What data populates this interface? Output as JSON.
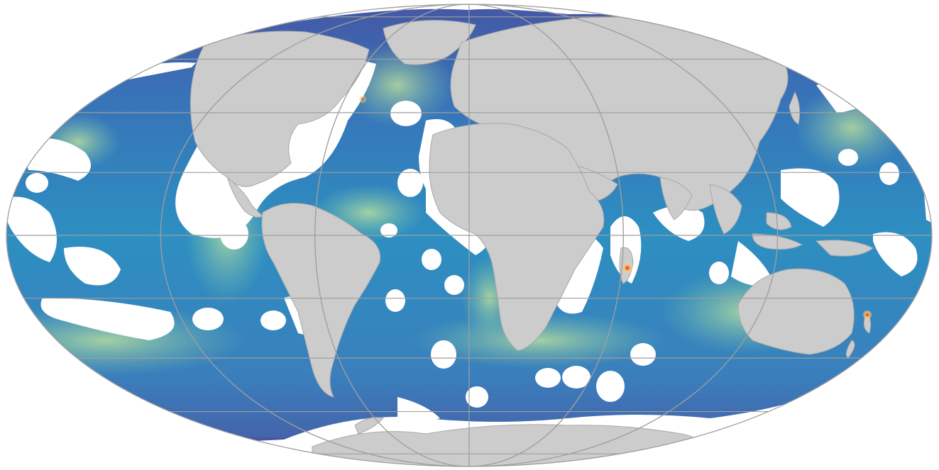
{
  "map": {
    "projection": "mollweide",
    "graticule": true,
    "colors": {
      "background": "#ffffff",
      "land": "#cccccc",
      "land_border": "#a8a8a8",
      "graticule": "#9e9e9e",
      "no_data": "#ffffff",
      "ocean_low": "#4a55a2",
      "ocean_mid": "#2f8fc0",
      "ocean_high": "#a8d98a",
      "hotspot": "#e8b23a",
      "hotspot_peak": "#d7301f"
    },
    "colormap": [
      "#5e4fa2",
      "#3f7fbc",
      "#2fa0c0",
      "#63bfa6",
      "#abdda4",
      "#e6f598",
      "#fdae61",
      "#d7301f"
    ],
    "hotspots": [
      {
        "name": "mozambique-channel-hotspot",
        "lon": 47,
        "lat": -20
      },
      {
        "name": "new-zealand-hotspot",
        "lon": 174,
        "lat": -38
      },
      {
        "name": "north-atlantic-hotspot",
        "lon": -42,
        "lat": 58
      }
    ]
  }
}
